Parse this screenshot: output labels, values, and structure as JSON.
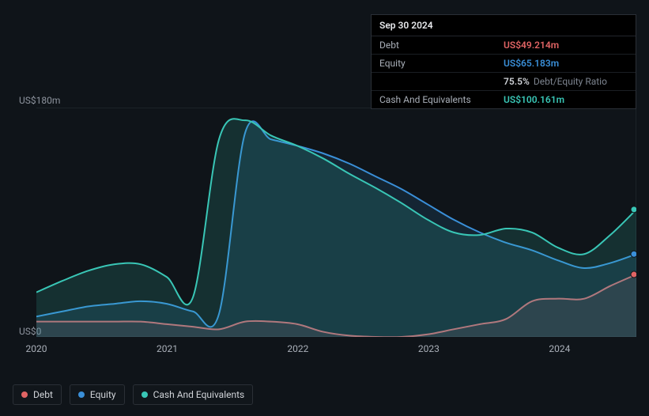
{
  "tooltip": {
    "date": "Sep 30 2024",
    "rows": {
      "debt": {
        "label": "Debt",
        "value": "US$49.214m",
        "color": "#e06464"
      },
      "equity": {
        "label": "Equity",
        "value": "US$65.183m",
        "color": "#3a8fd8"
      },
      "ratio": {
        "label": "",
        "pct": "75.5%",
        "sub": "Debt/Equity Ratio",
        "color": "#e6e8eb"
      },
      "cash": {
        "label": "Cash And Equivalents",
        "value": "US$100.161m",
        "color": "#39c6b6"
      }
    }
  },
  "chart": {
    "type": "area",
    "background": "#0f1419",
    "y_label_top": "US$180m",
    "y_label_bottom": "US$0",
    "y_max": 180,
    "y_min": 0,
    "x_ticks": [
      {
        "label": "2020",
        "t": 0.0
      },
      {
        "label": "2021",
        "t": 0.218
      },
      {
        "label": "2022",
        "t": 0.436
      },
      {
        "label": "2023",
        "t": 0.654
      },
      {
        "label": "2024",
        "t": 0.872
      }
    ],
    "plot_border": "#2a2f36",
    "plot_left_border_hide": true,
    "series": {
      "cash": {
        "label": "Cash And Equivalents",
        "color": "#39c6b6",
        "fill": "rgba(57,198,182,0.16)",
        "values": [
          35,
          44,
          52,
          57,
          57,
          47,
          31,
          155,
          170,
          158,
          150,
          140,
          128,
          117,
          105,
          92,
          82,
          80,
          85,
          82,
          70,
          65,
          80,
          100
        ]
      },
      "equity": {
        "label": "Equity",
        "color": "#3a8fd8",
        "fill": "rgba(58,143,216,0.14)",
        "values": [
          16,
          20,
          24,
          26,
          28,
          26,
          20,
          18,
          160,
          155,
          150,
          144,
          136,
          126,
          116,
          104,
          92,
          82,
          74,
          68,
          60,
          54,
          58,
          65
        ]
      },
      "debt": {
        "label": "Debt",
        "color": "#e06464",
        "fill": "rgba(224,100,100,0.13)",
        "values": [
          12,
          12,
          12,
          12,
          12,
          10,
          8,
          6,
          12,
          12,
          10,
          4,
          1,
          0,
          0,
          2,
          6,
          10,
          14,
          28,
          30,
          30,
          40,
          49
        ]
      }
    },
    "end_marker_right_offset": 0
  },
  "legend": {
    "items": [
      {
        "key": "debt",
        "label": "Debt",
        "color": "#e06464"
      },
      {
        "key": "equity",
        "label": "Equity",
        "color": "#3a8fd8"
      },
      {
        "key": "cash",
        "label": "Cash And Equivalents",
        "color": "#39c6b6"
      }
    ]
  }
}
